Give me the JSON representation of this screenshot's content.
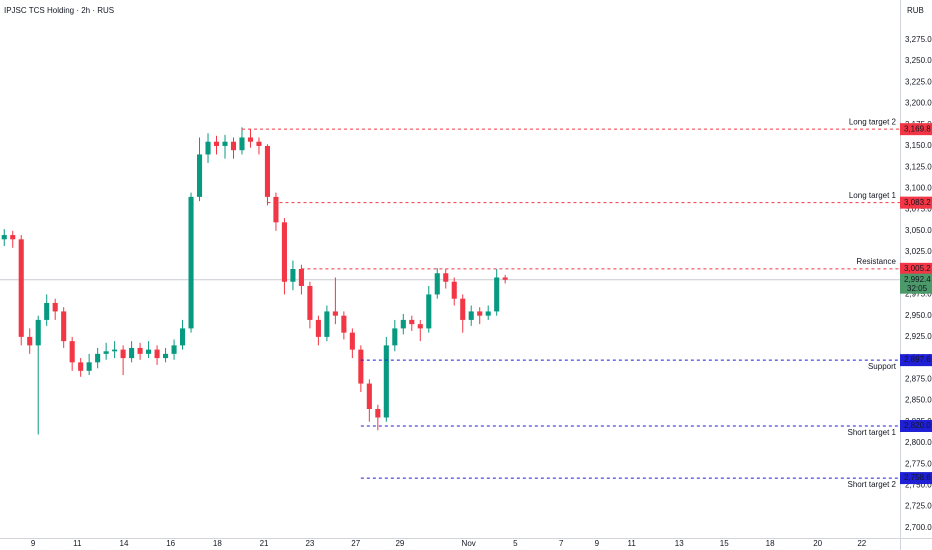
{
  "chart_data": {
    "type": "candlestick",
    "title": "IPJSC TCS Holding · 2h · RUS",
    "currency": "RUB",
    "up_color": "#089981",
    "down_color": "#f23645",
    "x": [
      0,
      1,
      2,
      3,
      4,
      5,
      6,
      7,
      8,
      9,
      10,
      11,
      12,
      13,
      14,
      15,
      16,
      17,
      18,
      19,
      20,
      21,
      22,
      23,
      24,
      25,
      26,
      27,
      28,
      29,
      30,
      31,
      32,
      33,
      34,
      35,
      36,
      37,
      38,
      39,
      40,
      41,
      42,
      43,
      44,
      45,
      46,
      47,
      48,
      49,
      50,
      51,
      52,
      53,
      54,
      55,
      56,
      57,
      58,
      59
    ],
    "open": [
      3040,
      3045,
      3040,
      2925,
      2915,
      2945,
      2965,
      2955,
      2920,
      2895,
      2885,
      2895,
      2905,
      2908,
      2910,
      2900,
      2912,
      2905,
      2910,
      2900,
      2905,
      2915,
      2935,
      3090,
      3140,
      3155,
      3150,
      3155,
      3145,
      3160,
      3155,
      3150,
      3090,
      3060,
      2990,
      3005,
      2985,
      2945,
      2925,
      2955,
      2950,
      2930,
      2910,
      2870,
      2840,
      2830,
      2915,
      2935,
      2945,
      2940,
      2935,
      2975,
      3000,
      2990,
      2970,
      2945,
      2955,
      2950,
      2955,
      2995
    ],
    "high": [
      3052,
      3050,
      3045,
      2935,
      2950,
      2975,
      2970,
      2960,
      2925,
      2900,
      2905,
      2912,
      2918,
      2920,
      2915,
      2920,
      2918,
      2920,
      2915,
      2912,
      2922,
      2945,
      3095,
      3160,
      3165,
      3162,
      3163,
      3160,
      3172,
      3170,
      3160,
      3152,
      3095,
      3065,
      3015,
      3010,
      2990,
      2950,
      2962,
      2995,
      2955,
      2935,
      2915,
      2875,
      2845,
      2925,
      2945,
      2952,
      2950,
      2945,
      2985,
      3006,
      3005,
      2995,
      2975,
      2962,
      2960,
      2962,
      3005,
      2998
    ],
    "low": [
      3032,
      3030,
      2915,
      2905,
      2810,
      2938,
      2945,
      2912,
      2885,
      2878,
      2880,
      2888,
      2898,
      2900,
      2880,
      2895,
      2898,
      2900,
      2892,
      2895,
      2898,
      2910,
      2930,
      3085,
      3130,
      3140,
      3135,
      3135,
      3140,
      3148,
      3140,
      3080,
      3050,
      2975,
      2980,
      2975,
      2935,
      2915,
      2920,
      2940,
      2922,
      2900,
      2860,
      2825,
      2815,
      2825,
      2908,
      2928,
      2932,
      2920,
      2930,
      2970,
      2982,
      2962,
      2930,
      2938,
      2940,
      2945,
      2950,
      2988
    ],
    "close": [
      3045,
      3040,
      2925,
      2915,
      2945,
      2965,
      2955,
      2920,
      2895,
      2885,
      2895,
      2905,
      2908,
      2910,
      2900,
      2912,
      2905,
      2910,
      2900,
      2905,
      2915,
      2935,
      3090,
      3140,
      3155,
      3150,
      3155,
      3145,
      3160,
      3155,
      3150,
      3090,
      3060,
      2990,
      3005,
      2985,
      2945,
      2925,
      2955,
      2950,
      2930,
      2910,
      2870,
      2840,
      2830,
      2915,
      2935,
      2945,
      2940,
      2935,
      2975,
      3000,
      2990,
      2970,
      2945,
      2955,
      2950,
      2955,
      2995,
      2992.4
    ],
    "xlim": [
      -0.5,
      105.5
    ],
    "xticks": [
      {
        "value": 3.4,
        "label": "9"
      },
      {
        "value": 8.6,
        "label": "11"
      },
      {
        "value": 14.1,
        "label": "14"
      },
      {
        "value": 19.6,
        "label": "16"
      },
      {
        "value": 25.1,
        "label": "18"
      },
      {
        "value": 30.6,
        "label": "21"
      },
      {
        "value": 36.0,
        "label": "23"
      },
      {
        "value": 41.4,
        "label": "27"
      },
      {
        "value": 46.6,
        "label": "29"
      },
      {
        "value": 54.7,
        "label": "Nov"
      },
      {
        "value": 60.2,
        "label": "5"
      },
      {
        "value": 65.6,
        "label": "7"
      },
      {
        "value": 69.8,
        "label": "9"
      },
      {
        "value": 73.9,
        "label": "11"
      },
      {
        "value": 79.5,
        "label": "13"
      },
      {
        "value": 84.8,
        "label": "15"
      },
      {
        "value": 90.2,
        "label": "18"
      },
      {
        "value": 95.8,
        "label": "20"
      },
      {
        "value": 101.0,
        "label": "22"
      }
    ],
    "ylim": [
      2688,
      3322
    ],
    "yticks": [
      {
        "value": 2700,
        "label": "2,700.0"
      },
      {
        "value": 2725,
        "label": "2,725.0"
      },
      {
        "value": 2750,
        "label": "2,750.0"
      },
      {
        "value": 2775,
        "label": "2,775.0"
      },
      {
        "value": 2800,
        "label": "2,800.0"
      },
      {
        "value": 2825,
        "label": "2,825.0"
      },
      {
        "value": 2850,
        "label": "2,850.0"
      },
      {
        "value": 2875,
        "label": "2,875.0"
      },
      {
        "value": 2900,
        "label": "2,900.0"
      },
      {
        "value": 2925,
        "label": "2,925.0"
      },
      {
        "value": 2950,
        "label": "2,950.0"
      },
      {
        "value": 2975,
        "label": "2,975.0"
      },
      {
        "value": 3000,
        "label": "3,000.0"
      },
      {
        "value": 3025,
        "label": "3,025.0"
      },
      {
        "value": 3050,
        "label": "3,050.0"
      },
      {
        "value": 3075,
        "label": "3,075.0"
      },
      {
        "value": 3100,
        "label": "3,100.0"
      },
      {
        "value": 3125,
        "label": "3,125.0"
      },
      {
        "value": 3150,
        "label": "3,150.0"
      },
      {
        "value": 3175,
        "label": "3,175.0"
      },
      {
        "value": 3200,
        "label": "3,200.0"
      },
      {
        "value": 3225,
        "label": "3,225.0"
      },
      {
        "value": 3250,
        "label": "3,250.0"
      },
      {
        "value": 3275,
        "label": "3,275.0"
      }
    ],
    "levels": [
      {
        "name": "Long target 2",
        "value": 3169.8,
        "value_label": "3,169.8",
        "color": "#f23645",
        "x0": 28
      },
      {
        "name": "Long target 1",
        "value": 3083.2,
        "value_label": "3,083.2",
        "color": "#f23645",
        "x0": 31
      },
      {
        "name": "Resistance",
        "value": 3005.2,
        "value_label": "3,005.2",
        "color": "#f23645",
        "x0": 35
      },
      {
        "name": "Support",
        "value": 2897.6,
        "value_label": "2,897.6",
        "color": "#1f1fd6",
        "x0": 42
      },
      {
        "name": "Short target 1",
        "value": 2820.0,
        "value_label": "2,820.0",
        "color": "#1f1fd6",
        "x0": 42
      },
      {
        "name": "Short target 2",
        "value": 2758.6,
        "value_label": "2,758.6",
        "color": "#1f1fd6",
        "x0": 42
      }
    ],
    "last_price": {
      "value": 2992.4,
      "value_label": "2,992.4",
      "countdown": "32:05",
      "color": "#4c9a6a"
    }
  }
}
